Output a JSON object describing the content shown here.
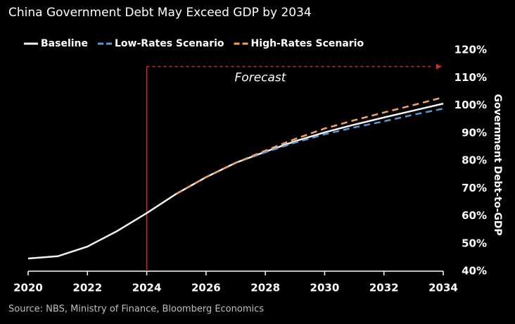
{
  "chart_data": {
    "type": "line",
    "title": "China Government Debt May Exceed GDP by 2034",
    "source": "Source: NBS, Ministry of Finance, Bloomberg Economics",
    "y_label": "Government Debt-to-GDP",
    "x": [
      2020,
      2021,
      2022,
      2023,
      2024,
      2025,
      2026,
      2027,
      2028,
      2029,
      2030,
      2031,
      2032,
      2033,
      2034
    ],
    "series": [
      {
        "name": "Baseline",
        "color": "#f2f2f2",
        "line_style": "solid",
        "values": [
          44.6,
          45.4,
          48.9,
          54.5,
          61,
          68,
          74,
          79.2,
          83.2,
          87,
          90.2,
          93,
          95.6,
          98.1,
          100.6
        ]
      },
      {
        "name": "Low-Rates Scenario",
        "color": "#5b9bd5",
        "line_style": "dashed",
        "values": [
          null,
          null,
          null,
          null,
          null,
          68,
          74,
          79.2,
          83,
          86.5,
          89.5,
          92,
          94.2,
          96.6,
          98.8
        ]
      },
      {
        "name": "High-Rates Scenario",
        "color": "#f4a460",
        "line_style": "dashed",
        "values": [
          null,
          null,
          null,
          null,
          null,
          68,
          74,
          79.2,
          83.6,
          87.8,
          91.6,
          94.6,
          97.4,
          100.1,
          102.9
        ]
      }
    ],
    "xlim": [
      2020,
      2034
    ],
    "xticks": [
      2020,
      2022,
      2024,
      2026,
      2028,
      2030,
      2032,
      2034
    ],
    "ylim": [
      40,
      120
    ],
    "yticks": [
      {
        "value": 40,
        "label": "40%"
      },
      {
        "value": 50,
        "label": "50%"
      },
      {
        "value": 60,
        "label": "60%"
      },
      {
        "value": 70,
        "label": "70%"
      },
      {
        "value": 80,
        "label": "80%"
      },
      {
        "value": 90,
        "label": "90%"
      },
      {
        "value": 100,
        "label": "100%"
      },
      {
        "value": 110,
        "label": "110%"
      },
      {
        "value": 120,
        "label": "120%"
      }
    ],
    "y_axis_side": "right",
    "grid": false,
    "annotations": [
      {
        "text": "Forecast",
        "x": 2024,
        "y": 114,
        "color": "#e0262b"
      }
    ]
  }
}
